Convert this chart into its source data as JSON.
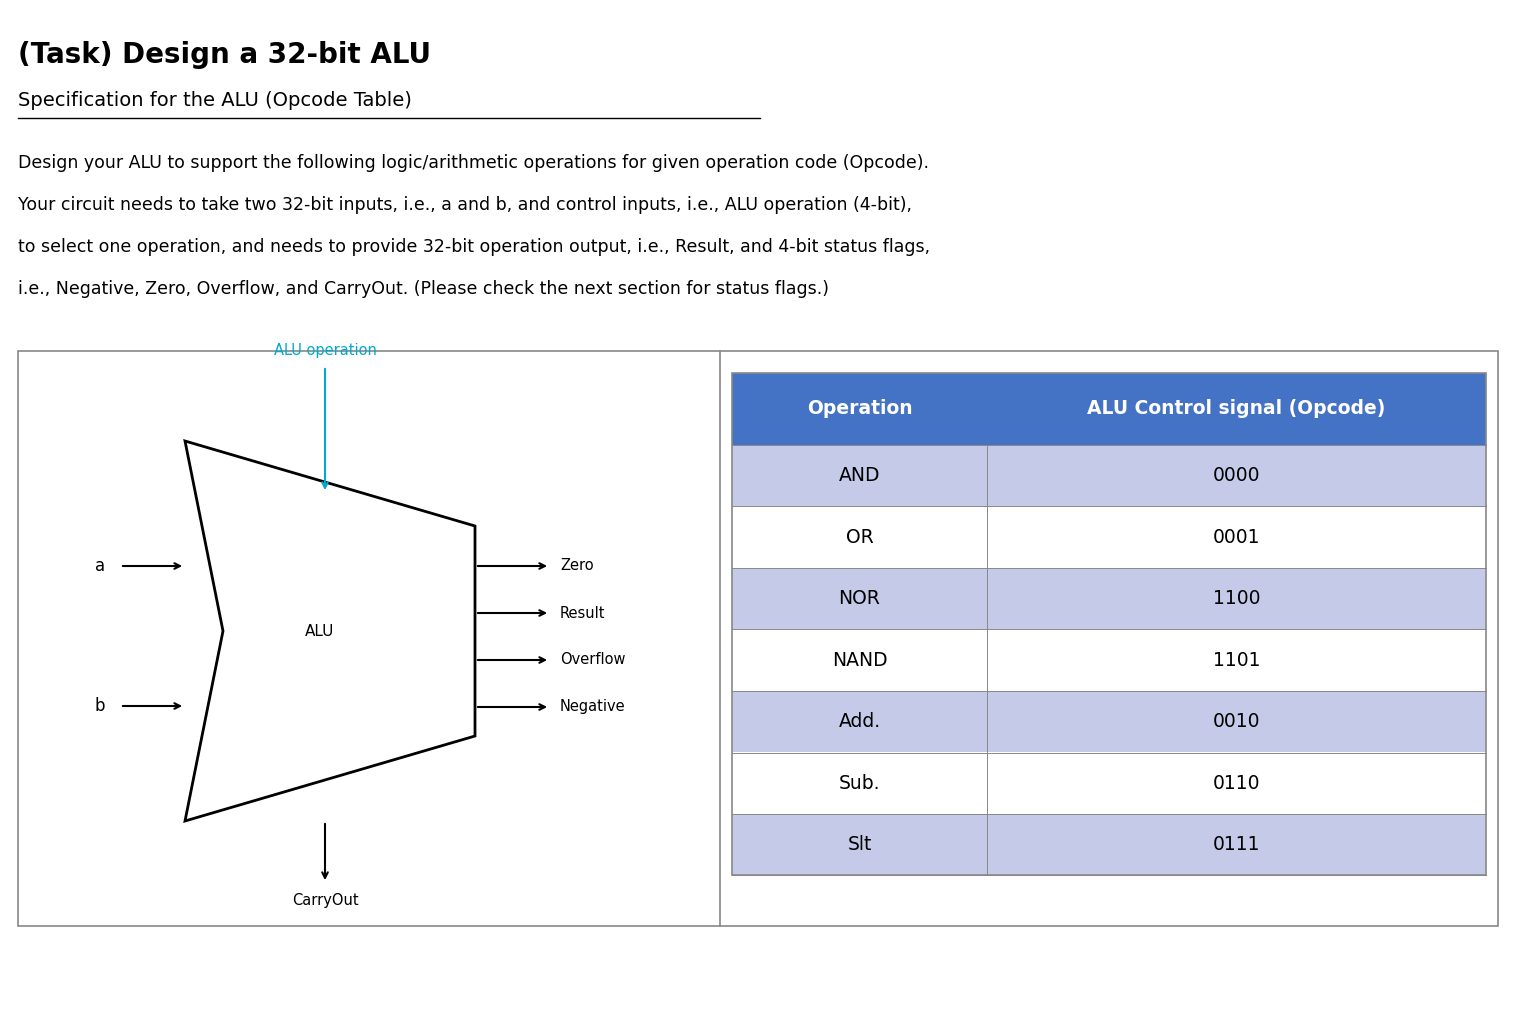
{
  "title": "(Task) Design a 32-bit ALU",
  "subtitle": "Specification for the ALU (Opcode Table)",
  "body_text": [
    "Design your ALU to support the following logic/arithmetic operations for given operation code (Opcode).",
    "Your circuit needs to take two 32-bit inputs, i.e., a and b, and control inputs, i.e., ALU operation (4-bit),",
    "to select one operation, and needs to provide 32-bit operation output, i.e., Result, and 4-bit status flags,",
    "i.e., Negative, Zero, Overflow, and CarryOut. (Please check the next section for status flags.)"
  ],
  "table_header": [
    "Operation",
    "ALU Control signal (Opcode)"
  ],
  "table_rows": [
    [
      "AND",
      "0000"
    ],
    [
      "OR",
      "0001"
    ],
    [
      "NOR",
      "1100"
    ],
    [
      "NAND",
      "1101"
    ],
    [
      "Add.",
      "0010"
    ],
    [
      "Sub.",
      "0110"
    ],
    [
      "Slt",
      "0111"
    ]
  ],
  "header_bg": "#4472C4",
  "header_fg": "#FFFFFF",
  "row_bg_odd": "#C5CAE9",
  "row_bg_even": "#FFFFFF",
  "border_color": "#888888",
  "alu_label_color": "#00AACC",
  "background_color": "#FFFFFF"
}
